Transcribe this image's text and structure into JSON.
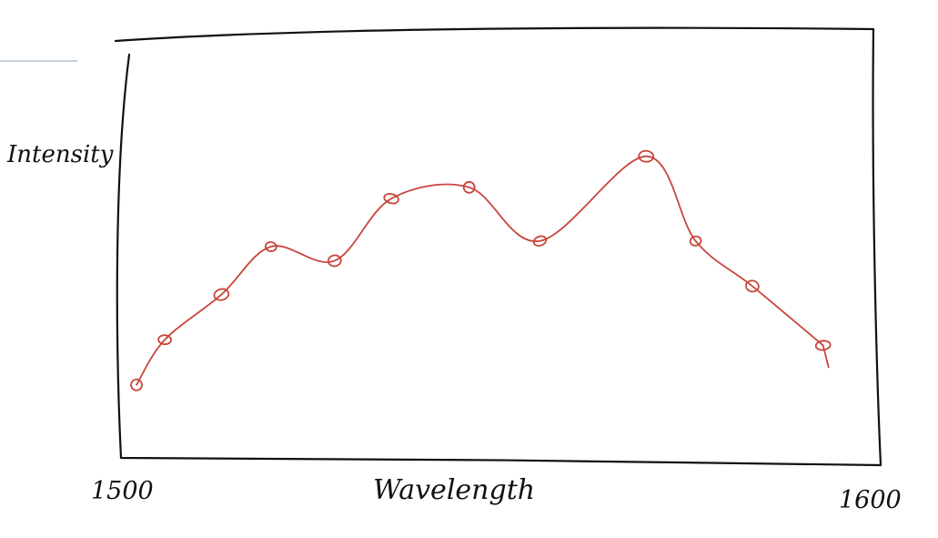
{
  "chart_data": {
    "type": "line",
    "title": "",
    "xlabel": "Wavelength",
    "ylabel": "Intensity",
    "x_tick_labels": [
      "1500",
      "1600"
    ],
    "xlim": [
      1500,
      1600
    ],
    "ylim": [
      0,
      1
    ],
    "grid": false,
    "series_color": "#c8463c",
    "series": [
      {
        "x": [
          1500,
          1504,
          1512,
          1519,
          1528,
          1536,
          1547,
          1557,
          1572,
          1579,
          1587,
          1597
        ],
        "y": [
          0.12,
          0.28,
          0.44,
          0.61,
          0.56,
          0.78,
          0.82,
          0.63,
          0.93,
          0.63,
          0.47,
          0.26
        ]
      }
    ]
  }
}
